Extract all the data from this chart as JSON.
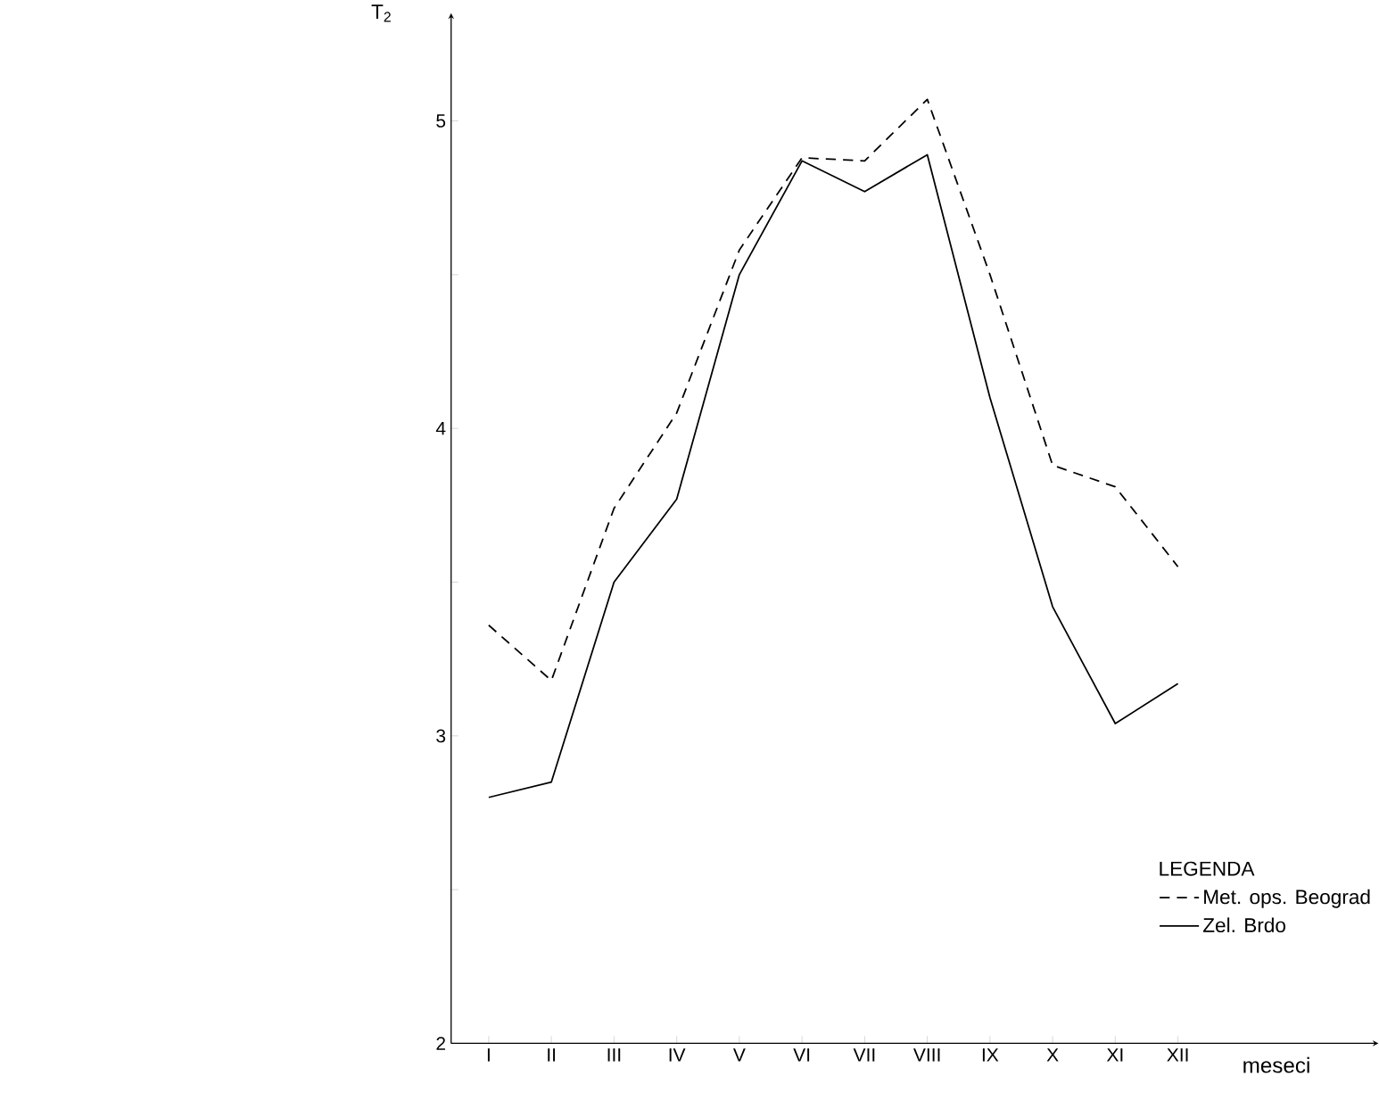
{
  "chart_data": {
    "type": "line",
    "xlabel": "meseci",
    "ylabel": "T$_{2}$",
    "legend_title": "LEGENDA",
    "categories": [
      "I",
      "II",
      "III",
      "IV",
      "V",
      "VI",
      "VII",
      "VIII",
      "IX",
      "X",
      "XI",
      "XII"
    ],
    "series": [
      {
        "name": "Met. ops. Beograd",
        "color": "#000000",
        "line_style": "dashed",
        "values": [
          3.36,
          3.18,
          3.74,
          4.05,
          4.58,
          4.88,
          4.87,
          5.07,
          4.5,
          3.88,
          3.81,
          3.55
        ]
      },
      {
        "name": "Zel. Brdo",
        "color": "#000000",
        "line_style": "solid",
        "values": [
          2.8,
          2.85,
          3.5,
          3.77,
          4.5,
          4.87,
          4.77,
          4.89,
          4.1,
          3.42,
          3.04,
          3.17
        ]
      }
    ],
    "ylim": [
      2,
      5.35
    ],
    "yticks": [
      2,
      {
        "value": 2.5,
        "label": null
      },
      3,
      {
        "value": 3.5,
        "label": null
      },
      4,
      {
        "value": 4.5,
        "label": null
      },
      5
    ],
    "legend": "bottom right",
    "marker": "none",
    "grid": false
  }
}
